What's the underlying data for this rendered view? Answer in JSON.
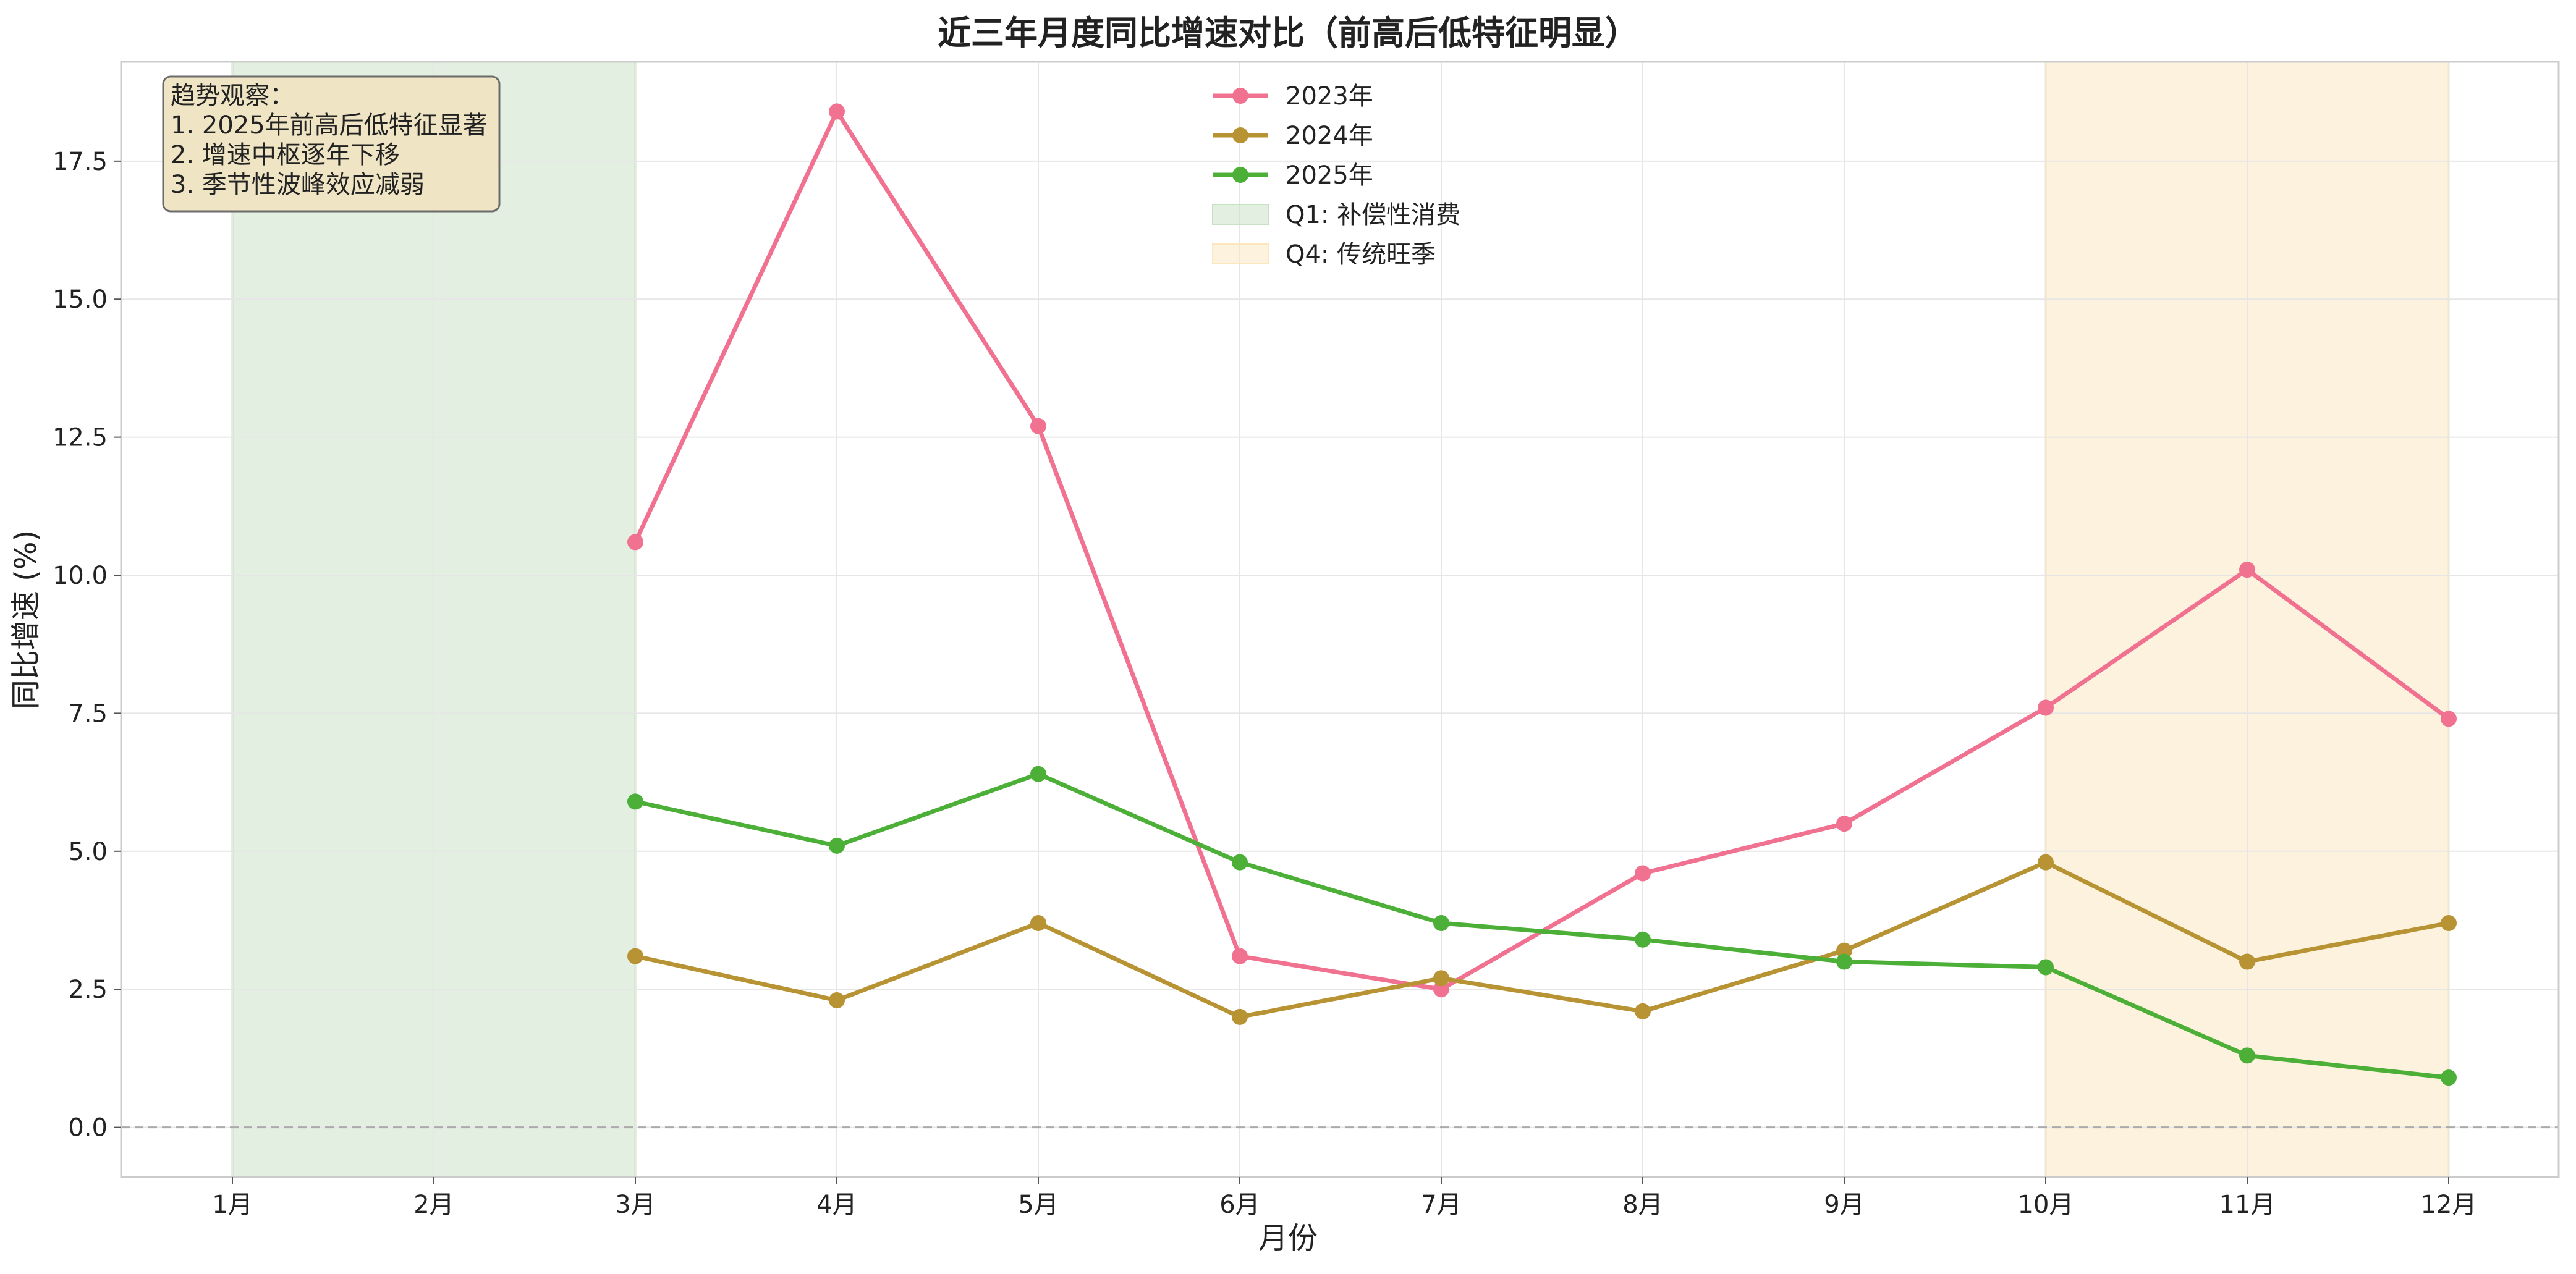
{
  "chart_data": {
    "type": "line",
    "title": "近三年月度同比增速对比（前高后低特征明显）",
    "xlabel": "月份",
    "ylabel": "同比增速 (%)",
    "categories": [
      "1月",
      "2月",
      "3月",
      "4月",
      "5月",
      "6月",
      "7月",
      "8月",
      "9月",
      "10月",
      "11月",
      "12月"
    ],
    "ylim": [
      -0.9,
      19.3
    ],
    "yticks": [
      0.0,
      2.5,
      5.0,
      7.5,
      10.0,
      12.5,
      15.0,
      17.5
    ],
    "ytick_labels": [
      "0.0",
      "2.5",
      "5.0",
      "7.5",
      "10.0",
      "12.5",
      "15.0",
      "17.5"
    ],
    "grid": true,
    "legend_position": "top-center",
    "reference_line": {
      "y": 0.0,
      "style": "dashed",
      "color": "#aaaaaa"
    },
    "series": [
      {
        "name": "2023年",
        "color": "#f07190",
        "values": [
          null,
          null,
          10.6,
          18.4,
          12.7,
          3.1,
          2.5,
          4.6,
          5.5,
          7.6,
          10.1,
          7.4
        ]
      },
      {
        "name": "2024年",
        "color": "#b89333",
        "values": [
          null,
          null,
          3.1,
          2.3,
          3.7,
          2.0,
          2.7,
          2.1,
          3.2,
          4.8,
          3.0,
          3.7
        ]
      },
      {
        "name": "2025年",
        "color": "#4caf37",
        "values": [
          null,
          null,
          5.9,
          5.1,
          6.4,
          4.8,
          3.7,
          3.4,
          3.0,
          2.9,
          1.3,
          0.9
        ]
      }
    ],
    "shaded_regions": [
      {
        "label": "Q1: 补偿性消费",
        "from": "1月",
        "to": "3月",
        "color": "#c8e0c3",
        "alpha": 0.5
      },
      {
        "label": "Q4: 传统旺季",
        "from": "10月",
        "to": "12月",
        "color": "#fbe6bd",
        "alpha": 0.5
      }
    ],
    "annotation": {
      "lines": [
        "趋势观察：",
        "1. 2025年前高后低特征显著",
        "2. 增速中枢逐年下移",
        "3. 季节性波峰效应减弱"
      ],
      "position": "top-left",
      "background": "#efe4c4"
    }
  }
}
